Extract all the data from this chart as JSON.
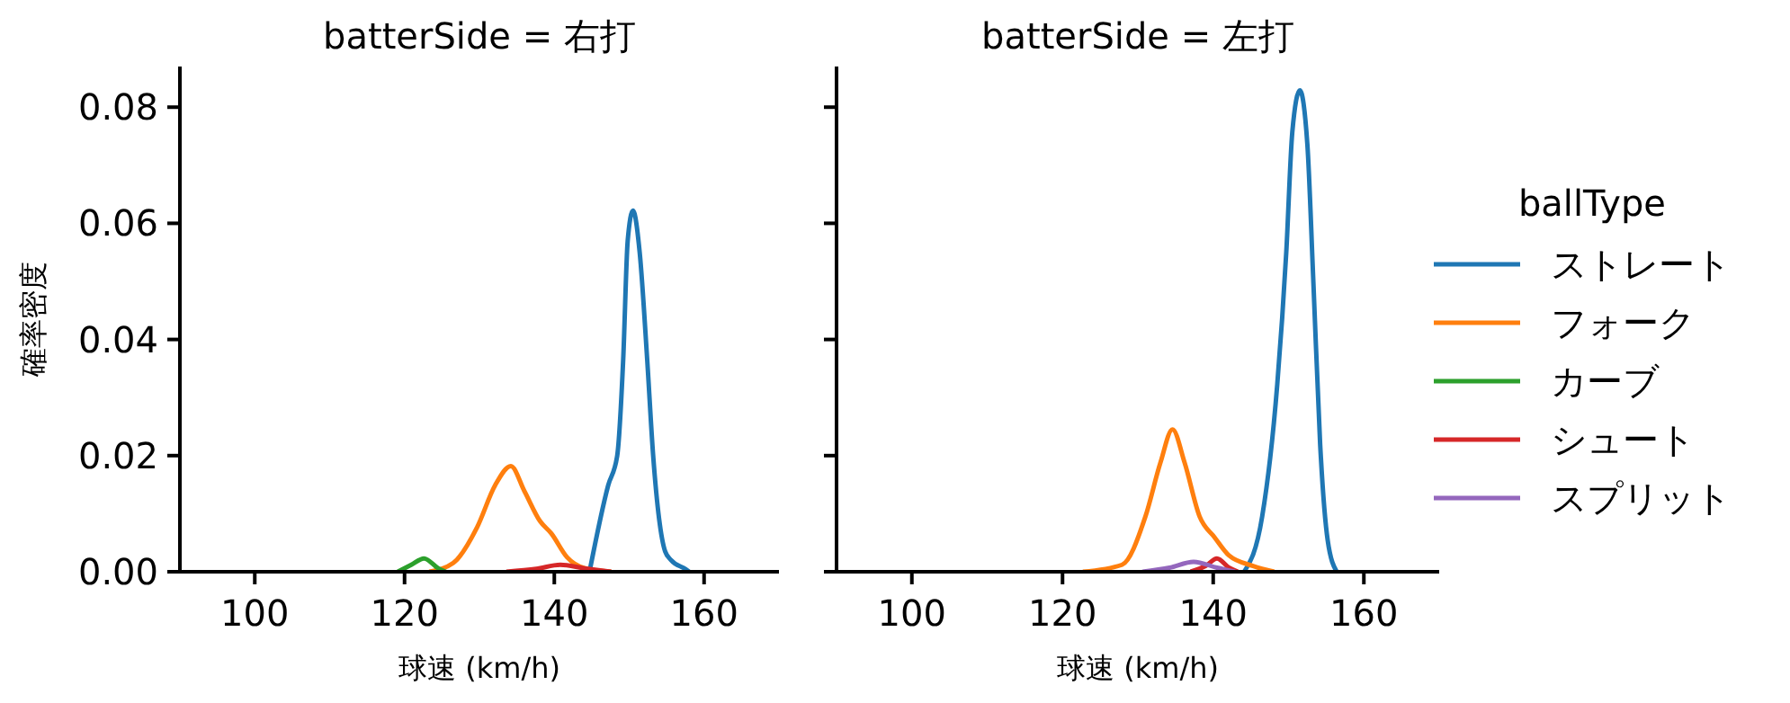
{
  "chart_data": [
    {
      "type": "line",
      "title": "batterSide = 右打",
      "xlabel": "球速 (km/h)",
      "ylabel": "確率密度",
      "xlim": [
        90,
        170
      ],
      "ylim": [
        0,
        0.087
      ],
      "xticks": [
        100,
        120,
        140,
        160
      ],
      "yticks": [
        {
          "value": 0,
          "label": "0.00"
        },
        {
          "value": 0.02,
          "label": "0.02"
        },
        {
          "value": 0.04,
          "label": "0.04"
        },
        {
          "value": 0.06,
          "label": "0.06"
        },
        {
          "value": 0.08,
          "label": "0.08"
        }
      ],
      "legend": false,
      "series": [
        {
          "color": "#1f77b4",
          "x": [
            144.7,
            147.2,
            148.4,
            149.2,
            149.8,
            150.5,
            151.4,
            152.4,
            153.2,
            154.8,
            155.6,
            157.6,
            158
          ],
          "values": [
            0,
            0.0149,
            0.02,
            0.0366,
            0.057,
            0.0622,
            0.055,
            0.0366,
            0.02,
            0.0035,
            0.002,
            0.0004,
            0
          ]
        },
        {
          "color": "#ff7f0e",
          "x": [
            123.3,
            126.5,
            129.7,
            132.1,
            134.2,
            136,
            138.1,
            139.6,
            141.7,
            144.1,
            147.6
          ],
          "values": [
            0,
            0.0015,
            0.0077,
            0.0149,
            0.0182,
            0.0139,
            0.0087,
            0.0066,
            0.0025,
            0.0006,
            0
          ]
        },
        {
          "color": "#2ca02c",
          "x": [
            119.1,
            120.9,
            122.6,
            124.5,
            125.5
          ],
          "values": [
            0,
            0.0012,
            0.0023,
            0.0006,
            0
          ]
        },
        {
          "color": "#d62728",
          "x": [
            133.6,
            137.6,
            140.8,
            144,
            147.6
          ],
          "values": [
            0,
            0.0005,
            0.0012,
            0.0006,
            0
          ]
        }
      ]
    },
    {
      "type": "line",
      "title": "batterSide = 左打",
      "xlabel": "球速 (km/h)",
      "legend_title": "ballType",
      "xlim": [
        90,
        170
      ],
      "ylim": [
        0,
        0.087
      ],
      "xticks": [
        100,
        120,
        140,
        160
      ],
      "yticks": [
        {
          "value": 0,
          "label": null
        },
        {
          "value": 0.02,
          "label": null
        },
        {
          "value": 0.04,
          "label": null
        },
        {
          "value": 0.06,
          "label": null
        },
        {
          "value": 0.08,
          "label": null
        }
      ],
      "tick_labels": "x",
      "legend": "right",
      "series": [
        {
          "name": "ストレート",
          "color": "#1f77b4",
          "x": [
            144.1,
            146.5,
            148.5,
            149.7,
            150.5,
            151.5,
            152.5,
            153.3,
            154.2,
            155.2,
            156.4
          ],
          "values": [
            0,
            0.0095,
            0.0322,
            0.055,
            0.0757,
            0.0829,
            0.0736,
            0.0498,
            0.0219,
            0.0054,
            0
          ]
        },
        {
          "name": "フォーク",
          "color": "#ff7f0e",
          "x": [
            122.7,
            127.9,
            131,
            133,
            134.6,
            136.2,
            138.2,
            140.2,
            142.1,
            145.3,
            148.1
          ],
          "values": [
            0,
            0.0012,
            0.0095,
            0.0188,
            0.0245,
            0.0188,
            0.0095,
            0.0059,
            0.0028,
            0.001,
            0
          ]
        },
        {
          "name": "カーブ",
          "color": "#2ca02c"
        },
        {
          "name": "シュート",
          "color": "#d62728",
          "x": [
            137,
            139,
            140.5,
            142.1,
            143.3
          ],
          "values": [
            0,
            0.001,
            0.0023,
            0.0007,
            0
          ]
        },
        {
          "name": "スプリット",
          "color": "#9467bd",
          "x": [
            130.6,
            134.2,
            137.4,
            140.5,
            142.9
          ],
          "values": [
            0,
            0.0007,
            0.0017,
            0.0007,
            0
          ]
        }
      ]
    }
  ]
}
